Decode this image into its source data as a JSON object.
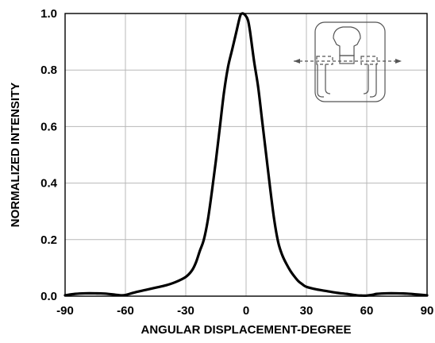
{
  "chart_data": {
    "type": "line",
    "title": "",
    "xlabel": "ANGULAR DISPLACEMENT-DEGREE",
    "ylabel": "NORMALIZED INTENSITY",
    "xlim": [
      -90,
      90
    ],
    "ylim": [
      0,
      1.0
    ],
    "x_ticks": [
      -90,
      -60,
      -30,
      0,
      30,
      60,
      90
    ],
    "x_tick_labels": [
      "-90",
      "-60",
      "-30",
      "0",
      "30",
      "60",
      "90"
    ],
    "y_ticks": [
      0,
      0.2,
      0.4,
      0.6,
      0.8,
      1.0
    ],
    "y_tick_labels": [
      "0.0",
      "0.2",
      "0.4",
      "0.6",
      "0.8",
      "1.0"
    ],
    "grid": true,
    "series": [
      {
        "x": [
          -90,
          -85,
          -80,
          -75,
          -70,
          -65,
          -62,
          -60,
          -57,
          -55,
          -50,
          -45,
          -40,
          -35,
          -30,
          -27,
          -25,
          -23,
          -21,
          -19,
          -17,
          -15,
          -13,
          -11,
          -9,
          -7,
          -5,
          -3,
          -2,
          -1,
          0,
          1,
          2,
          4,
          6,
          8,
          10,
          12,
          14,
          16,
          18,
          20,
          22,
          24,
          26,
          28,
          30,
          35,
          40,
          45,
          50,
          55,
          58,
          60,
          63,
          65,
          70,
          75,
          80,
          85,
          90
        ],
        "y": [
          0.003,
          0.008,
          0.01,
          0.01,
          0.009,
          0.005,
          0.003,
          0.004,
          0.01,
          0.014,
          0.022,
          0.03,
          0.038,
          0.05,
          0.068,
          0.09,
          0.118,
          0.16,
          0.2,
          0.27,
          0.37,
          0.48,
          0.6,
          0.72,
          0.81,
          0.87,
          0.93,
          0.99,
          1.0,
          0.998,
          0.99,
          0.975,
          0.935,
          0.83,
          0.74,
          0.62,
          0.5,
          0.38,
          0.27,
          0.19,
          0.145,
          0.115,
          0.09,
          0.07,
          0.053,
          0.042,
          0.033,
          0.024,
          0.018,
          0.012,
          0.008,
          0.003,
          0.002,
          0.002,
          0.005,
          0.008,
          0.01,
          0.01,
          0.009,
          0.006,
          0.003
        ]
      }
    ]
  }
}
